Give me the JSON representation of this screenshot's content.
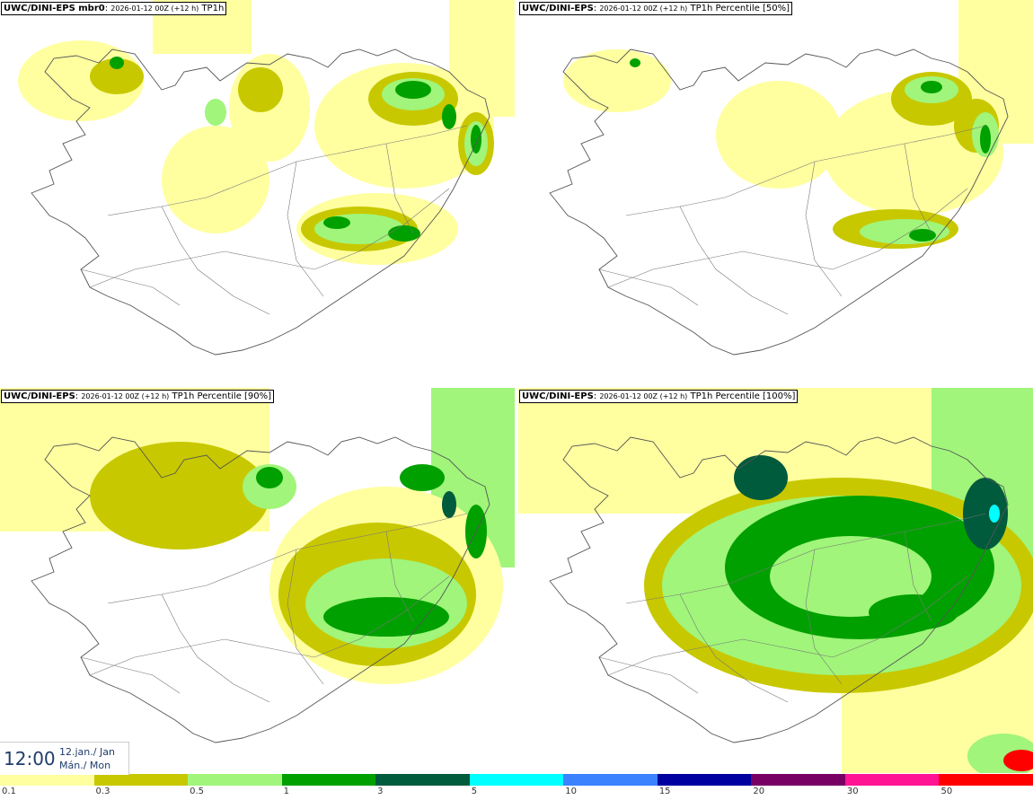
{
  "panels": [
    {
      "id": "p1",
      "model": "UWC/DINI-EPS mbr0",
      "run": "2026-01-12 00Z (+12 h)",
      "field": "TP1h"
    },
    {
      "id": "p2",
      "model": "UWC/DINI-EPS",
      "run": "2026-01-12 00Z (+12 h)",
      "field": "TP1h Percentile [50%]"
    },
    {
      "id": "p3",
      "model": "UWC/DINI-EPS",
      "run": "2026-01-12 00Z (+12 h)",
      "field": "TP1h Percentile [90%]"
    },
    {
      "id": "p4",
      "model": "UWC/DINI-EPS",
      "run": "2026-01-12 00Z (+12 h)",
      "field": "TP1h Percentile [100%]"
    }
  ],
  "valid_time": {
    "hour": "12:00",
    "date_line": "12.jan./ Jan",
    "day_line": "Mán./ Mon"
  },
  "legend": {
    "ticks": [
      "0.1",
      "0.3",
      "0.5",
      "1",
      "3",
      "5",
      "10",
      "15",
      "20",
      "30",
      "50"
    ],
    "colors": [
      "#ffffa0",
      "#c8c800",
      "#a0f57a",
      "#00a000",
      "#005a3c",
      "#00ffff",
      "#3c82ff",
      "#0000a0",
      "#780064",
      "#ff1493",
      "#ff0000"
    ]
  }
}
